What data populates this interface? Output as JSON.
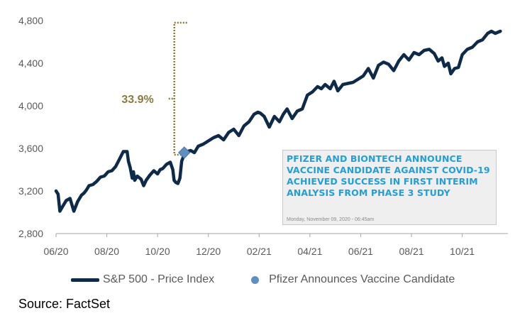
{
  "chart_data": {
    "type": "line",
    "title": "",
    "xlabel": "",
    "ylabel": "",
    "ylim": [
      2800,
      4800
    ],
    "yticks": [
      2800,
      3200,
      3600,
      4000,
      4400,
      4800
    ],
    "ytick_labels": [
      "2,800",
      "3,200",
      "3,600",
      "4,000",
      "4,400",
      "4,800"
    ],
    "xlim": [
      0,
      17.8
    ],
    "xticks": [
      0,
      2,
      4,
      6,
      8,
      10,
      12,
      14,
      16
    ],
    "xtick_labels": [
      "06/20",
      "08/20",
      "10/20",
      "12/20",
      "02/21",
      "04/21",
      "06/21",
      "08/21",
      "10/21"
    ],
    "series": [
      {
        "name": "S&P 500 - Price Index",
        "color": "#0d2a4a",
        "x": [
          0.0,
          0.08,
          0.15,
          0.25,
          0.4,
          0.55,
          0.7,
          0.85,
          0.9,
          1.0,
          1.1,
          1.2,
          1.3,
          1.45,
          1.6,
          1.75,
          1.9,
          2.05,
          2.2,
          2.35,
          2.5,
          2.65,
          2.8,
          2.85,
          2.92,
          3.0,
          3.05,
          3.1,
          3.2,
          3.35,
          3.45,
          3.55,
          3.7,
          3.85,
          4.0,
          4.1,
          4.2,
          4.35,
          4.5,
          4.6,
          4.65,
          4.72,
          4.8,
          4.88,
          4.95,
          5.0,
          5.05,
          5.15,
          5.3,
          5.45,
          5.6,
          5.8,
          6.0,
          6.2,
          6.4,
          6.6,
          6.8,
          7.0,
          7.2,
          7.4,
          7.6,
          7.8,
          7.95,
          8.05,
          8.2,
          8.4,
          8.6,
          8.8,
          8.95,
          9.1,
          9.3,
          9.5,
          9.7,
          9.9,
          10.1,
          10.3,
          10.45,
          10.6,
          10.8,
          10.95,
          11.1,
          11.3,
          11.5,
          11.7,
          11.9,
          12.1,
          12.3,
          12.5,
          12.7,
          12.9,
          13.1,
          13.3,
          13.5,
          13.7,
          13.9,
          14.1,
          14.3,
          14.5,
          14.7,
          14.9,
          15.05,
          15.2,
          15.3,
          15.45,
          15.55,
          15.7,
          15.85,
          16.0,
          16.2,
          16.4,
          16.6,
          16.8,
          17.0,
          17.15,
          17.3,
          17.5
        ],
        "values": [
          3200,
          3170,
          3010,
          3050,
          3110,
          3130,
          3010,
          3100,
          3120,
          3160,
          3180,
          3210,
          3250,
          3260,
          3290,
          3330,
          3340,
          3380,
          3390,
          3430,
          3500,
          3570,
          3570,
          3480,
          3420,
          3320,
          3380,
          3300,
          3340,
          3310,
          3250,
          3300,
          3350,
          3390,
          3360,
          3400,
          3410,
          3450,
          3470,
          3400,
          3300,
          3280,
          3270,
          3320,
          3480,
          3510,
          3560,
          3570,
          3580,
          3560,
          3620,
          3640,
          3670,
          3700,
          3720,
          3680,
          3750,
          3780,
          3720,
          3810,
          3850,
          3920,
          3940,
          3930,
          3900,
          3800,
          3900,
          3850,
          3920,
          3970,
          3880,
          3950,
          3970,
          4100,
          4130,
          4180,
          4160,
          4200,
          4160,
          4230,
          4140,
          4200,
          4210,
          4220,
          4250,
          4280,
          4350,
          4260,
          4380,
          4410,
          4390,
          4330,
          4420,
          4480,
          4430,
          4500,
          4480,
          4520,
          4530,
          4490,
          4420,
          4450,
          4370,
          4400,
          4300,
          4350,
          4360,
          4480,
          4530,
          4550,
          4600,
          4620,
          4680,
          4700,
          4680,
          4700
        ]
      }
    ],
    "points": [
      {
        "name": "Pfizer Announces Vaccine Candidate",
        "x": 5.05,
        "y": 3560,
        "color": "#5f8fc2"
      }
    ],
    "annotations": [
      {
        "text": "33.9%",
        "color": "#8a7a3e",
        "from_x": 5.05,
        "from_y": 3540,
        "to_x": 5.5,
        "to_y": 4780
      }
    ],
    "callout": {
      "headline": "PFIZER AND BIONTECH ANNOUNCE VACCINE CANDIDATE AGAINST COVID-19 ACHIEVED SUCCESS IN FIRST INTERIM ANALYSIS FROM PHASE 3 STUDY",
      "date": "Monday, November 09, 2020 - 06:45am",
      "text_color": "#1ea0dc"
    },
    "legend": [
      "S&P 500 - Price Index",
      "Pfizer Announces Vaccine Candidate"
    ],
    "legend_position": "bottom"
  },
  "source": "Source: FactSet"
}
